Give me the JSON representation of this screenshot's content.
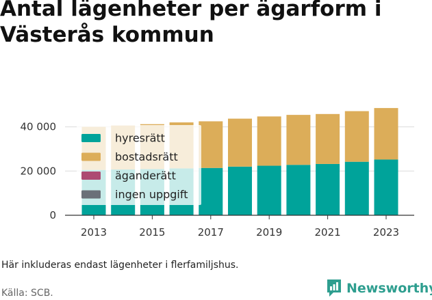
{
  "header": {
    "title": "Antal lägenheter per ägarform i Västerås kommun"
  },
  "footer": {
    "note": "Här inkluderas endast lägenheter i flerfamiljshus.",
    "source": "Källa: SCB.",
    "brand": "Newsworthy"
  },
  "colors": {
    "hyresratt": "#00a39a",
    "bostadsratt": "#dcad59",
    "aganderatt": "#ad4a72",
    "ingen_uppgift": "#6b7078",
    "grid": "#dcdcdc",
    "axis": "#333333",
    "brand": "#2e9e8f"
  },
  "chart_data": {
    "type": "bar",
    "stacked": true,
    "categories": [
      "2013",
      "2014",
      "2015",
      "2016",
      "2017",
      "2018",
      "2019",
      "2020",
      "2021",
      "2022",
      "2023"
    ],
    "x_tick_labels": [
      "2013",
      "2015",
      "2017",
      "2019",
      "2021",
      "2023"
    ],
    "y_tick_values": [
      0,
      20000,
      40000
    ],
    "y_tick_labels": [
      "0",
      "20 000",
      "40 000"
    ],
    "ylim": [
      0,
      51000
    ],
    "grid": true,
    "legend_position": "top-left",
    "title": "Antal lägenheter per ägarform i Västerås kommun",
    "xlabel": "",
    "ylabel": "",
    "series": [
      {
        "name": "hyresrätt",
        "color_key": "hyresratt",
        "values": [
          20500,
          20700,
          20900,
          21200,
          21400,
          22000,
          22400,
          22800,
          23200,
          24200,
          25200
        ]
      },
      {
        "name": "bostadsrätt",
        "color_key": "bostadsratt",
        "values": [
          19500,
          19900,
          20300,
          20800,
          21100,
          21700,
          22300,
          22600,
          22600,
          22900,
          23300
        ]
      },
      {
        "name": "äganderätt",
        "color_key": "aganderatt",
        "values": [
          0,
          0,
          0,
          0,
          0,
          0,
          0,
          0,
          0,
          0,
          0
        ]
      },
      {
        "name": "ingen uppgift",
        "color_key": "ingen_uppgift",
        "values": [
          0,
          0,
          0,
          0,
          0,
          0,
          0,
          0,
          0,
          0,
          0
        ]
      }
    ]
  }
}
